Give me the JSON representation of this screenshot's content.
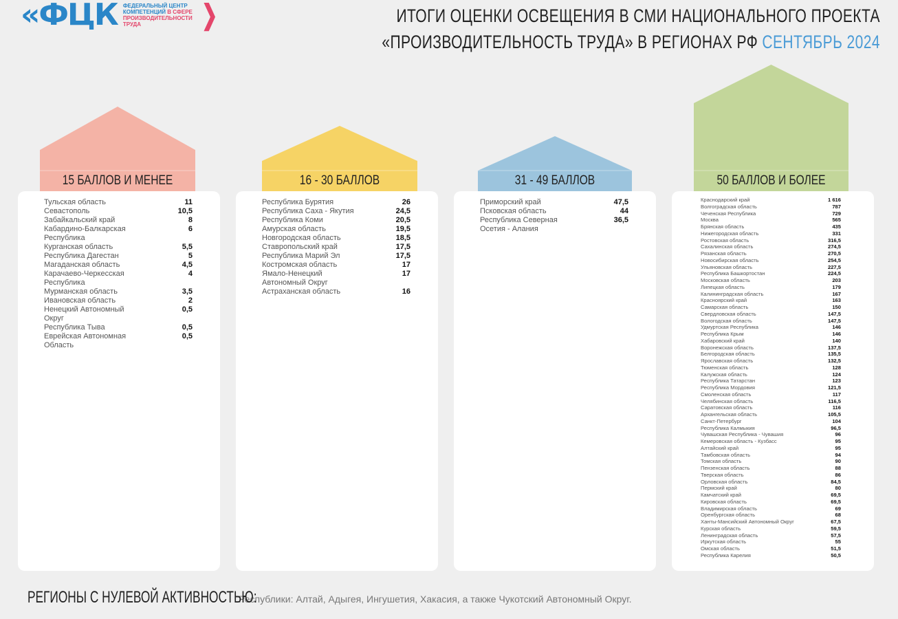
{
  "logo": {
    "mark": "«ФЦК",
    "line1": "ФЕДЕРАЛЬНЫЙ ЦЕНТР",
    "line2a": "КОМПЕТЕНЦИЙ",
    "line2b": " В СФЕРЕ",
    "line3": "ПРОИЗВОДИТЕЛЬНОСТИ",
    "line4": "ТРУДА"
  },
  "title": {
    "line1": "ИТОГИ ОЦЕНКИ ОСВЕЩЕНИЯ В СМИ НАЦИОНАЛЬНОГО ПРОЕКТА",
    "line2": "«ПРОИЗВОДИТЕЛЬНОСТЬ ТРУДА» В РЕГИОНАХ РФ",
    "period": "СЕНТЯБРЬ 2024"
  },
  "colors": {
    "group1": "#f4b3a6",
    "group2": "#f6d365",
    "group3": "#9cc4dd",
    "group4": "#c3d69a",
    "accent": "#4a9bd6"
  },
  "groups": [
    {
      "label": "15 БАЛЛОВ И МЕНЕЕ",
      "rows": [
        [
          "Тульская область",
          "11"
        ],
        [
          "Севастополь",
          "10,5"
        ],
        [
          "Забайкальский край",
          "8"
        ],
        [
          "Кабардино-Балкарская Республика",
          "6"
        ],
        [
          "Курганская область",
          "5,5"
        ],
        [
          "Республика Дагестан",
          "5"
        ],
        [
          "Магаданская область",
          "4,5"
        ],
        [
          "Карачаево-Черкесская Республика",
          "4"
        ],
        [
          "Мурманская область",
          "3,5"
        ],
        [
          "Ивановская область",
          "2"
        ],
        [
          "Ненецкий Автономный Округ",
          "0,5"
        ],
        [
          "Республика Тыва",
          "0,5"
        ],
        [
          "Еврейская Автономная Область",
          "0,5"
        ]
      ]
    },
    {
      "label": "16 - 30 БАЛЛОВ",
      "rows": [
        [
          "Республика Бурятия",
          "26"
        ],
        [
          "Республика Саха - Якутия",
          "24,5"
        ],
        [
          "Республика Коми",
          "20,5"
        ],
        [
          "Амурская область",
          "19,5"
        ],
        [
          "Новгородская область",
          "18,5"
        ],
        [
          "Ставропольский край",
          "17,5"
        ],
        [
          "Республика Марий Эл",
          "17,5"
        ],
        [
          "Костромская область",
          "17"
        ],
        [
          "Ямало-Ненецкий Автономный Округ",
          "17"
        ],
        [
          "Астраханская область",
          "16"
        ]
      ]
    },
    {
      "label": "31 - 49 БАЛЛОВ",
      "rows": [
        [
          "Приморский край",
          "47,5"
        ],
        [
          "Псковская область",
          "44"
        ],
        [
          "Республика Северная Осетия - Алания",
          "36,5"
        ]
      ]
    },
    {
      "label": "50 БАЛЛОВ И БОЛЕЕ",
      "rows": [
        [
          "Краснодарский край",
          "1 616"
        ],
        [
          "Волгоградская область",
          "787"
        ],
        [
          "Чеченская Республика",
          "729"
        ],
        [
          "Москва",
          "565"
        ],
        [
          "Брянская область",
          "435"
        ],
        [
          "Нижегородская область",
          "331"
        ],
        [
          "Ростовская область",
          "316,5"
        ],
        [
          "Сахалинская область",
          "274,5"
        ],
        [
          "Рязанская область",
          "270,5"
        ],
        [
          "Новосибирская область",
          "254,5"
        ],
        [
          "Ульяновская область",
          "227,5"
        ],
        [
          "Республика Башкортостан",
          "224,5"
        ],
        [
          "Московская область",
          "203"
        ],
        [
          "Липецкая область",
          "179"
        ],
        [
          "Калининградская область",
          "167"
        ],
        [
          "Красноярский край",
          "163"
        ],
        [
          "Самарская область",
          "150"
        ],
        [
          "Свердловская область",
          "147,5"
        ],
        [
          "Вологодская область",
          "147,5"
        ],
        [
          "Удмуртская Республика",
          "146"
        ],
        [
          "Республика Крым",
          "146"
        ],
        [
          "Хабаровский край",
          "140"
        ],
        [
          "Воронежская область",
          "137,5"
        ],
        [
          "Белгородская область",
          "135,5"
        ],
        [
          "Ярославская область",
          "132,5"
        ],
        [
          "Тюменская область",
          "128"
        ],
        [
          "Калужская область",
          "124"
        ],
        [
          "Республика Татарстан",
          "123"
        ],
        [
          "Республика Мордовия",
          "121,5"
        ],
        [
          "Смоленская область",
          "117"
        ],
        [
          "Челябинская область",
          "116,5"
        ],
        [
          "Саратовская область",
          "116"
        ],
        [
          "Архангельская область",
          "105,5"
        ],
        [
          "Санкт-Петербург",
          "104"
        ],
        [
          "Республика Калмыкия",
          "96,5"
        ],
        [
          "Чувашская Республика - Чувашия",
          "96"
        ],
        [
          "Кемеровская область - Кузбасс",
          "95"
        ],
        [
          "Алтайский край",
          "95"
        ],
        [
          "Тамбовская область",
          "94"
        ],
        [
          "Томская область",
          "90"
        ],
        [
          "Пензенская область",
          "88"
        ],
        [
          "Тверская область",
          "86"
        ],
        [
          "Орловская область",
          "84,5"
        ],
        [
          "Пермский край",
          "80"
        ],
        [
          "Камчатский край",
          "69,5"
        ],
        [
          "Кировская область",
          "69,5"
        ],
        [
          "Владимирская область",
          "69"
        ],
        [
          "Оренбургская область",
          "68"
        ],
        [
          "Ханты-Мансийский Автономный Округ",
          "67,5"
        ],
        [
          "Курская область",
          "59,5"
        ],
        [
          "Ленинградская область",
          "57,5"
        ],
        [
          "Иркутская область",
          "55"
        ],
        [
          "Омская область",
          "51,5"
        ],
        [
          "Республика Карелия",
          "50,5"
        ]
      ]
    }
  ],
  "footer": {
    "label": "РЕГИОНЫ С НУЛЕВОЙ АКТИВНОСТЬЮ:",
    "text": "Республики: Алтай, Адыгея, Ингушетия, Хакасия, а также Чукотский Автономный Округ."
  }
}
